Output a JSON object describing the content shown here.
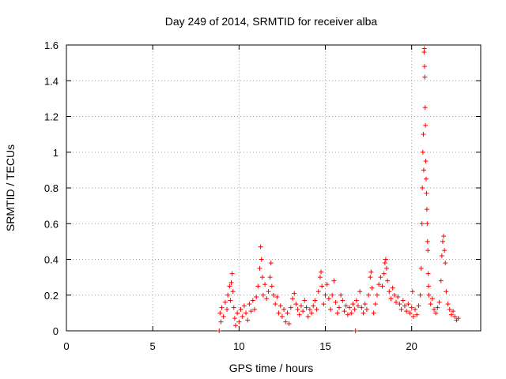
{
  "chart_data": {
    "type": "scatter",
    "title": "Day 249 of 2014, SRMTID for receiver alba",
    "xlabel": "GPS time / hours",
    "ylabel": "SRMTID / TECUs",
    "xlim": [
      0,
      24
    ],
    "ylim": [
      0,
      1.6
    ],
    "xticks": [
      "0",
      "5",
      "10",
      "15",
      "20"
    ],
    "xtick_values": [
      0,
      5,
      10,
      15,
      20
    ],
    "yticks": [
      "0",
      "0.2",
      "0.4",
      "0.6",
      "0.8",
      "1",
      "1.2",
      "1.4",
      "1.6"
    ],
    "ytick_values": [
      0,
      0.2,
      0.4,
      0.6,
      0.8,
      1.0,
      1.2,
      1.4,
      1.6
    ],
    "grid": true,
    "marker": "+",
    "color": "#ff0000",
    "series": [
      {
        "name": "SRMTID",
        "points": [
          [
            8.85,
            0.0
          ],
          [
            8.9,
            0.1
          ],
          [
            8.95,
            0.05
          ],
          [
            9.0,
            0.13
          ],
          [
            9.1,
            0.08
          ],
          [
            9.2,
            0.16
          ],
          [
            9.3,
            0.12
          ],
          [
            9.35,
            0.2
          ],
          [
            9.45,
            0.25
          ],
          [
            9.5,
            0.17
          ],
          [
            9.55,
            0.27
          ],
          [
            9.6,
            0.32
          ],
          [
            9.65,
            0.22
          ],
          [
            9.7,
            0.13
          ],
          [
            9.75,
            0.07
          ],
          [
            9.8,
            0.03
          ],
          [
            9.9,
            0.1
          ],
          [
            10.0,
            0.05
          ],
          [
            10.1,
            0.12
          ],
          [
            10.2,
            0.08
          ],
          [
            10.3,
            0.14
          ],
          [
            10.4,
            0.1
          ],
          [
            10.5,
            0.06
          ],
          [
            10.6,
            0.15
          ],
          [
            10.7,
            0.11
          ],
          [
            10.8,
            0.17
          ],
          [
            10.9,
            0.12
          ],
          [
            11.0,
            0.19
          ],
          [
            11.1,
            0.25
          ],
          [
            11.2,
            0.35
          ],
          [
            11.25,
            0.47
          ],
          [
            11.3,
            0.4
          ],
          [
            11.35,
            0.3
          ],
          [
            11.4,
            0.2
          ],
          [
            11.5,
            0.26
          ],
          [
            11.6,
            0.18
          ],
          [
            11.7,
            0.22
          ],
          [
            11.8,
            0.3
          ],
          [
            11.85,
            0.38
          ],
          [
            11.9,
            0.25
          ],
          [
            12.0,
            0.2
          ],
          [
            12.1,
            0.15
          ],
          [
            12.2,
            0.19
          ],
          [
            12.3,
            0.1
          ],
          [
            12.4,
            0.14
          ],
          [
            12.5,
            0.08
          ],
          [
            12.6,
            0.12
          ],
          [
            12.7,
            0.05
          ],
          [
            12.8,
            0.1
          ],
          [
            12.9,
            0.04
          ],
          [
            13.0,
            0.13
          ],
          [
            13.1,
            0.18
          ],
          [
            13.2,
            0.21
          ],
          [
            13.3,
            0.15
          ],
          [
            13.4,
            0.12
          ],
          [
            13.5,
            0.09
          ],
          [
            13.6,
            0.14
          ],
          [
            13.7,
            0.11
          ],
          [
            13.8,
            0.17
          ],
          [
            13.9,
            0.13
          ],
          [
            14.0,
            0.08
          ],
          [
            14.1,
            0.12
          ],
          [
            14.2,
            0.1
          ],
          [
            14.3,
            0.14
          ],
          [
            14.4,
            0.17
          ],
          [
            14.5,
            0.12
          ],
          [
            14.6,
            0.22
          ],
          [
            14.7,
            0.3
          ],
          [
            14.75,
            0.33
          ],
          [
            14.8,
            0.25
          ],
          [
            14.9,
            0.15
          ],
          [
            15.0,
            0.2
          ],
          [
            15.1,
            0.26
          ],
          [
            15.2,
            0.18
          ],
          [
            15.3,
            0.12
          ],
          [
            15.4,
            0.2
          ],
          [
            15.5,
            0.28
          ],
          [
            15.6,
            0.16
          ],
          [
            15.7,
            0.1
          ],
          [
            15.8,
            0.13
          ],
          [
            15.9,
            0.2
          ],
          [
            16.0,
            0.17
          ],
          [
            16.1,
            0.11
          ],
          [
            16.2,
            0.14
          ],
          [
            16.3,
            0.09
          ],
          [
            16.4,
            0.13
          ],
          [
            16.5,
            0.1
          ],
          [
            16.6,
            0.15
          ],
          [
            16.7,
            0.12
          ],
          [
            16.75,
            0.0
          ],
          [
            16.8,
            0.17
          ],
          [
            16.9,
            0.14
          ],
          [
            17.0,
            0.22
          ],
          [
            17.1,
            0.13
          ],
          [
            17.2,
            0.1
          ],
          [
            17.3,
            0.15
          ],
          [
            17.4,
            0.12
          ],
          [
            17.5,
            0.2
          ],
          [
            17.6,
            0.3
          ],
          [
            17.65,
            0.33
          ],
          [
            17.7,
            0.24
          ],
          [
            17.8,
            0.1
          ],
          [
            17.9,
            0.15
          ],
          [
            18.0,
            0.2
          ],
          [
            18.1,
            0.26
          ],
          [
            18.2,
            0.3
          ],
          [
            18.3,
            0.25
          ],
          [
            18.4,
            0.32
          ],
          [
            18.45,
            0.38
          ],
          [
            18.5,
            0.4
          ],
          [
            18.55,
            0.35
          ],
          [
            18.6,
            0.28
          ],
          [
            18.7,
            0.22
          ],
          [
            18.8,
            0.18
          ],
          [
            18.9,
            0.24
          ],
          [
            19.0,
            0.2
          ],
          [
            19.1,
            0.16
          ],
          [
            19.2,
            0.19
          ],
          [
            19.3,
            0.15
          ],
          [
            19.4,
            0.12
          ],
          [
            19.5,
            0.17
          ],
          [
            19.6,
            0.14
          ],
          [
            19.7,
            0.11
          ],
          [
            19.8,
            0.15
          ],
          [
            19.9,
            0.1
          ],
          [
            20.0,
            0.13
          ],
          [
            20.05,
            0.22
          ],
          [
            20.1,
            0.08
          ],
          [
            20.2,
            0.12
          ],
          [
            20.3,
            0.09
          ],
          [
            20.4,
            0.14
          ],
          [
            20.5,
            0.2
          ],
          [
            20.55,
            0.35
          ],
          [
            20.6,
            0.6
          ],
          [
            20.62,
            0.8
          ],
          [
            20.65,
            1.0
          ],
          [
            20.68,
            1.1
          ],
          [
            20.7,
            0.9
          ],
          [
            20.72,
            1.56
          ],
          [
            20.74,
            1.58
          ],
          [
            20.75,
            1.48
          ],
          [
            20.76,
            1.42
          ],
          [
            20.78,
            1.25
          ],
          [
            20.8,
            1.15
          ],
          [
            20.82,
            0.95
          ],
          [
            20.84,
            0.85
          ],
          [
            20.86,
            0.77
          ],
          [
            20.88,
            0.68
          ],
          [
            20.9,
            0.6
          ],
          [
            20.92,
            0.5
          ],
          [
            20.94,
            0.45
          ],
          [
            20.96,
            0.32
          ],
          [
            20.98,
            0.25
          ],
          [
            21.0,
            0.2
          ],
          [
            21.1,
            0.15
          ],
          [
            21.2,
            0.18
          ],
          [
            21.3,
            0.12
          ],
          [
            21.4,
            0.1
          ],
          [
            21.5,
            0.13
          ],
          [
            21.6,
            0.16
          ],
          [
            21.7,
            0.28
          ],
          [
            21.75,
            0.42
          ],
          [
            21.8,
            0.5
          ],
          [
            21.85,
            0.53
          ],
          [
            21.9,
            0.45
          ],
          [
            21.95,
            0.38
          ],
          [
            22.0,
            0.22
          ],
          [
            22.1,
            0.15
          ],
          [
            22.2,
            0.12
          ],
          [
            22.3,
            0.09
          ],
          [
            22.4,
            0.11
          ],
          [
            22.5,
            0.08
          ],
          [
            22.6,
            0.06
          ],
          [
            22.7,
            0.07
          ]
        ]
      }
    ]
  }
}
